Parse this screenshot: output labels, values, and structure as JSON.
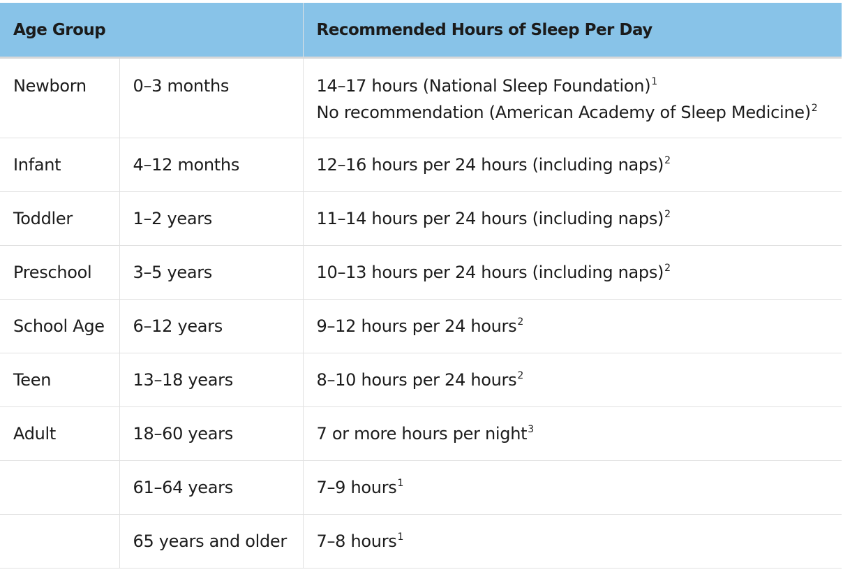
{
  "header": {
    "age_group": "Age Group",
    "recommended": "Recommended Hours of Sleep Per Day"
  },
  "rows": [
    {
      "group": "Newborn",
      "range": "0–3 months",
      "lines": [
        {
          "text": "14–17 hours (National Sleep Foundation)",
          "ref": "1"
        },
        {
          "text": "No recommendation (American Academy of Sleep Medicine)",
          "ref": "2"
        }
      ]
    },
    {
      "group": "Infant",
      "range": "4–12 months",
      "lines": [
        {
          "text": "12–16 hours per 24 hours (including naps)",
          "ref": "2"
        }
      ]
    },
    {
      "group": "Toddler",
      "range": "1–2 years",
      "lines": [
        {
          "text": "11–14 hours per 24 hours (including naps)",
          "ref": "2"
        }
      ]
    },
    {
      "group": "Preschool",
      "range": "3–5 years",
      "lines": [
        {
          "text": "10–13 hours per 24 hours (including naps)",
          "ref": "2"
        }
      ]
    },
    {
      "group": "School Age",
      "range": "6–12 years",
      "lines": [
        {
          "text": "9–12 hours per 24 hours",
          "ref": "2"
        }
      ]
    },
    {
      "group": "Teen",
      "range": "13–18 years",
      "lines": [
        {
          "text": "8–10 hours per 24 hours",
          "ref": "2"
        }
      ]
    },
    {
      "group": "Adult",
      "range": "18–60 years",
      "lines": [
        {
          "text": "7 or more hours per night",
          "ref": "3"
        }
      ]
    },
    {
      "group": "",
      "range": "61–64 years",
      "lines": [
        {
          "text": "7–9 hours",
          "ref": "1"
        }
      ]
    },
    {
      "group": "",
      "range": "65 years and older",
      "lines": [
        {
          "text": "7–8 hours",
          "ref": "1"
        }
      ]
    }
  ],
  "colors": {
    "header_bg": "#88c3e8",
    "text": "#1b1b1b",
    "border": "#e1e1e1"
  }
}
